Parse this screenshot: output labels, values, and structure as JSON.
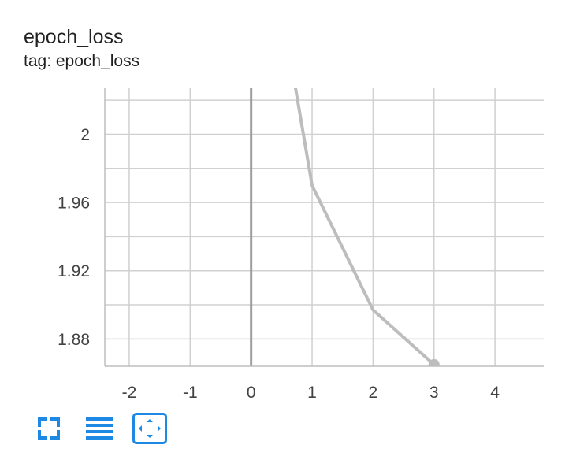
{
  "card": {
    "title": "epoch_loss",
    "subtitle": "tag: epoch_loss"
  },
  "toolbar": {
    "buttons": [
      {
        "icon": "fullscreen-icon"
      },
      {
        "icon": "toggle-log-scale-icon"
      },
      {
        "icon": "fit-domain-icon"
      }
    ],
    "accent_color": "#1e88e5"
  },
  "chart_data": {
    "type": "line",
    "title": "",
    "xlabel": "",
    "ylabel": "",
    "xlim": [
      -2.4,
      4.8
    ],
    "ylim": [
      1.864,
      2.027
    ],
    "x_ticks": [
      -2,
      -1,
      0,
      1,
      2,
      3,
      4
    ],
    "y_ticks": [
      1.88,
      1.92,
      1.96,
      2
    ],
    "x_tick_labels": [
      "-2",
      "-1",
      "0",
      "1",
      "2",
      "3",
      "4"
    ],
    "y_tick_labels": [
      "1.88",
      "1.92",
      "1.96",
      "2"
    ],
    "grid": true,
    "series": [
      {
        "x": [
          0,
          1,
          2,
          3
        ],
        "y": [
          2.18,
          1.97,
          1.897,
          1.865
        ],
        "color": "#bdbdbd"
      }
    ]
  }
}
